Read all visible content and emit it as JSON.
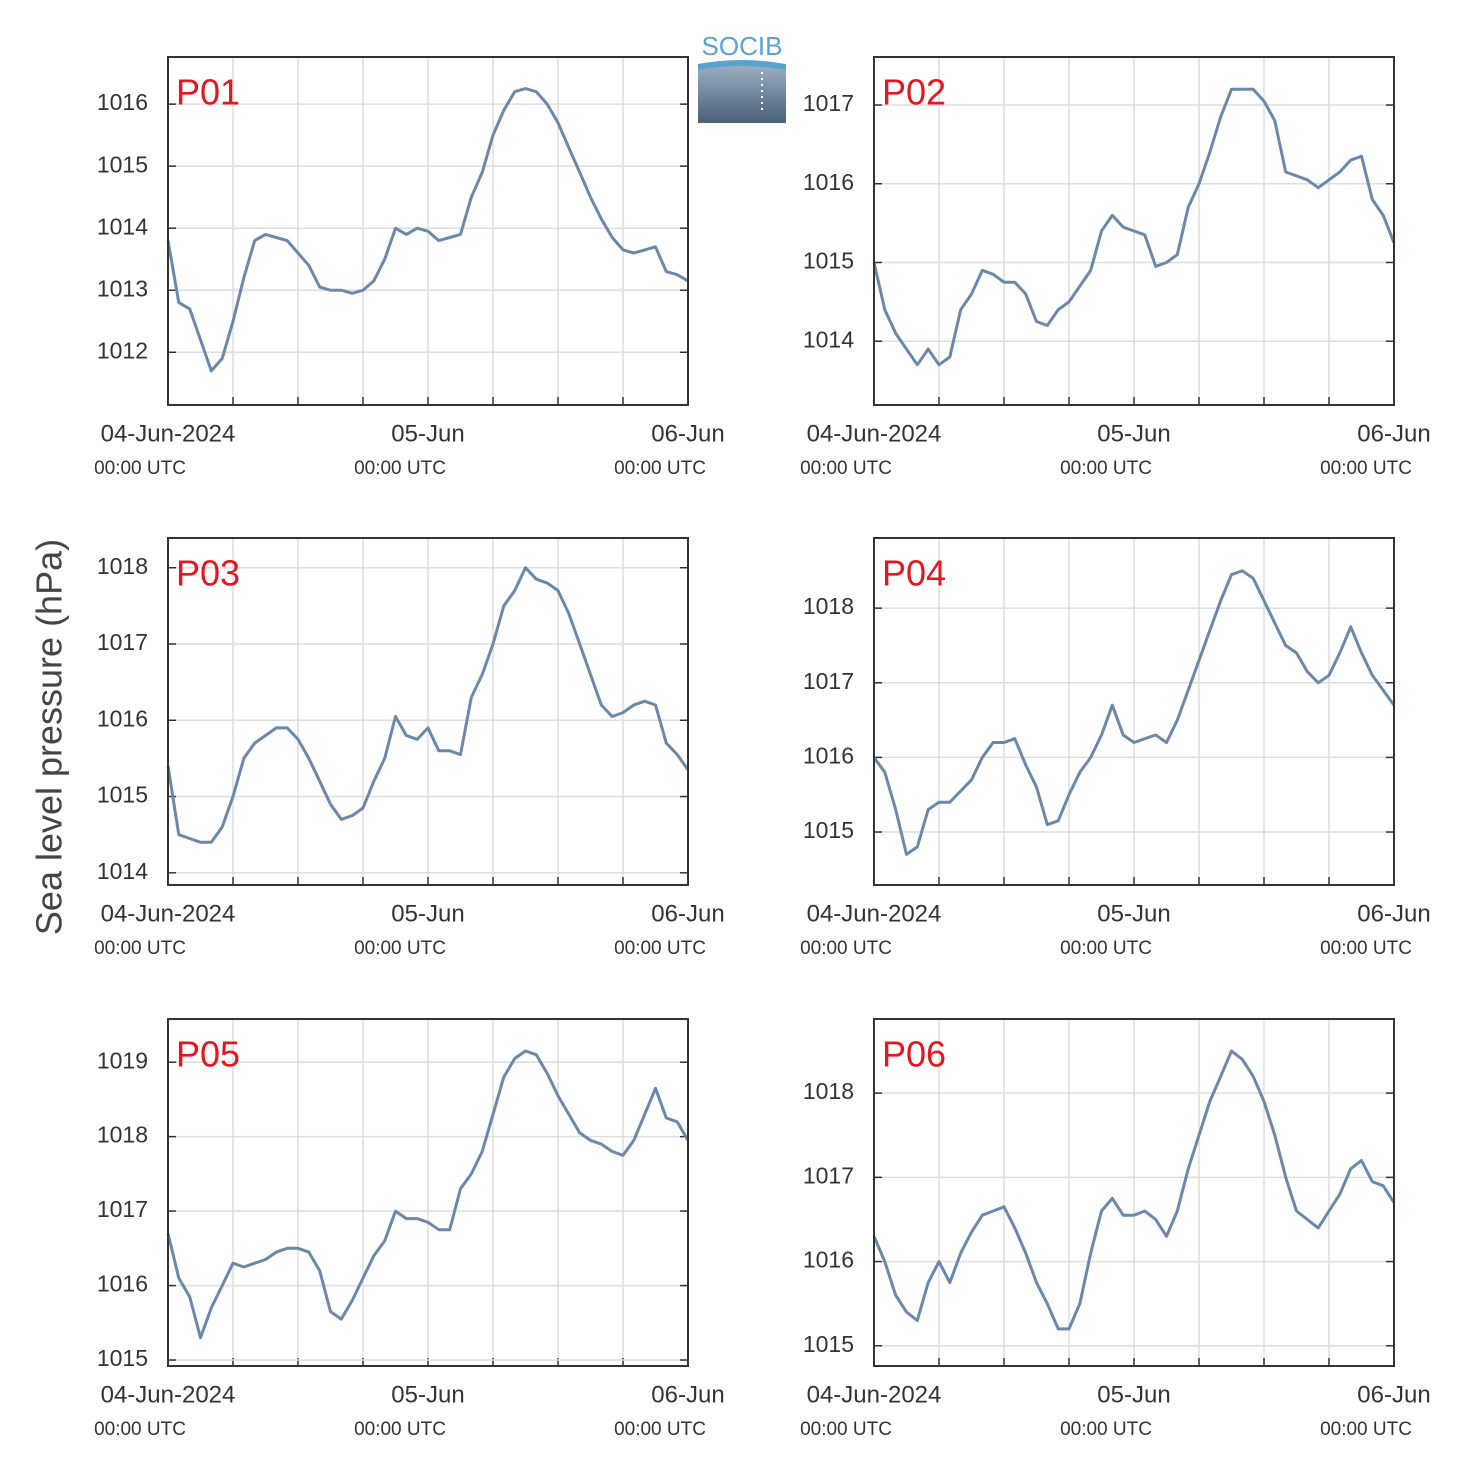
{
  "logo": "SOCIB",
  "y_label": "Sea level pressure (hPa)",
  "chart_data": [
    {
      "type": "line",
      "title": "P01",
      "color": "#6a88aa",
      "x": [
        0,
        1,
        2,
        3,
        4,
        5,
        6,
        7,
        8,
        9,
        10,
        11,
        12,
        13,
        14,
        15,
        16,
        17,
        18,
        19,
        20,
        21,
        22,
        23,
        24,
        25,
        26,
        27,
        28,
        29,
        30,
        31,
        32,
        33,
        34,
        35,
        36,
        37,
        38,
        39,
        40,
        41,
        42,
        43,
        44,
        45,
        46,
        47,
        48
      ],
      "values": [
        1013.8,
        1012.8,
        1012.7,
        1012.2,
        1011.7,
        1011.9,
        1012.5,
        1013.2,
        1013.8,
        1013.9,
        1013.85,
        1013.8,
        1013.6,
        1013.4,
        1013.05,
        1013.0,
        1013.0,
        1012.95,
        1013.0,
        1013.15,
        1013.5,
        1014.0,
        1013.9,
        1014.0,
        1013.95,
        1013.8,
        1013.85,
        1013.9,
        1014.5,
        1014.9,
        1015.5,
        1015.9,
        1016.2,
        1016.25,
        1016.2,
        1016.0,
        1015.7,
        1015.3,
        1014.9,
        1014.5,
        1014.15,
        1013.85,
        1013.65,
        1013.6,
        1013.65,
        1013.7,
        1013.3,
        1013.25,
        1013.15
      ],
      "xlim": [
        0,
        48
      ],
      "xticks": [
        {
          "value": 0,
          "label": "04-Jun-2024",
          "sublabel": "00:00 UTC"
        },
        {
          "value": 24,
          "label": "05-Jun",
          "sublabel": "00:00 UTC"
        },
        {
          "value": 48,
          "label": "06-Jun",
          "sublabel": "00:00 UTC"
        }
      ],
      "minor_xticks": [
        6,
        12,
        18,
        30,
        36,
        42
      ],
      "ylim": [
        1011.15,
        1016.76
      ],
      "yticks": [
        1012,
        1013,
        1014,
        1015,
        1016
      ],
      "grid": true
    },
    {
      "type": "line",
      "title": "P02",
      "color": "#6a88aa",
      "x": [
        0,
        1,
        2,
        3,
        4,
        5,
        6,
        7,
        8,
        9,
        10,
        11,
        12,
        13,
        14,
        15,
        16,
        17,
        18,
        19,
        20,
        21,
        22,
        23,
        24,
        25,
        26,
        27,
        28,
        29,
        30,
        31,
        32,
        33,
        34,
        35,
        36,
        37,
        38,
        39,
        40,
        41,
        42,
        43,
        44,
        45,
        46,
        47,
        48
      ],
      "values": [
        1015.0,
        1014.4,
        1014.1,
        1013.9,
        1013.7,
        1013.9,
        1013.7,
        1013.8,
        1014.4,
        1014.6,
        1014.9,
        1014.85,
        1014.75,
        1014.75,
        1014.6,
        1014.25,
        1014.2,
        1014.4,
        1014.5,
        1014.7,
        1014.9,
        1015.4,
        1015.6,
        1015.45,
        1015.4,
        1015.35,
        1014.95,
        1015.0,
        1015.1,
        1015.7,
        1016.0,
        1016.4,
        1016.85,
        1017.2,
        1017.2,
        1017.2,
        1017.05,
        1016.8,
        1016.15,
        1016.1,
        1016.05,
        1015.95,
        1016.05,
        1016.15,
        1016.3,
        1016.35,
        1015.8,
        1015.6,
        1015.25
      ],
      "xlim": [
        0,
        48
      ],
      "xticks": [
        {
          "value": 0,
          "label": "04-Jun-2024",
          "sublabel": "00:00 UTC"
        },
        {
          "value": 24,
          "label": "05-Jun",
          "sublabel": "00:00 UTC"
        },
        {
          "value": 48,
          "label": "06-Jun",
          "sublabel": "00:00 UTC"
        }
      ],
      "minor_xticks": [
        6,
        12,
        18,
        30,
        36,
        42
      ],
      "ylim": [
        1013.19,
        1017.61
      ],
      "yticks": [
        1014,
        1015,
        1016,
        1017
      ],
      "grid": true
    },
    {
      "type": "line",
      "title": "P03",
      "color": "#6a88aa",
      "x": [
        0,
        1,
        2,
        3,
        4,
        5,
        6,
        7,
        8,
        9,
        10,
        11,
        12,
        13,
        14,
        15,
        16,
        17,
        18,
        19,
        20,
        21,
        22,
        23,
        24,
        25,
        26,
        27,
        28,
        29,
        30,
        31,
        32,
        33,
        34,
        35,
        36,
        37,
        38,
        39,
        40,
        41,
        42,
        43,
        44,
        45,
        46,
        47,
        48
      ],
      "values": [
        1015.4,
        1014.5,
        1014.45,
        1014.4,
        1014.4,
        1014.6,
        1015.0,
        1015.5,
        1015.7,
        1015.8,
        1015.9,
        1015.9,
        1015.75,
        1015.5,
        1015.2,
        1014.9,
        1014.7,
        1014.75,
        1014.85,
        1015.2,
        1015.5,
        1016.05,
        1015.8,
        1015.75,
        1015.9,
        1015.6,
        1015.6,
        1015.55,
        1016.3,
        1016.6,
        1017.0,
        1017.5,
        1017.7,
        1018.0,
        1017.85,
        1017.8,
        1017.7,
        1017.4,
        1017.0,
        1016.6,
        1016.2,
        1016.05,
        1016.1,
        1016.2,
        1016.25,
        1016.2,
        1015.7,
        1015.55,
        1015.35
      ],
      "xlim": [
        0,
        48
      ],
      "xticks": [
        {
          "value": 0,
          "label": "04-Jun-2024",
          "sublabel": "00:00 UTC"
        },
        {
          "value": 24,
          "label": "05-Jun",
          "sublabel": "00:00 UTC"
        },
        {
          "value": 48,
          "label": "06-Jun",
          "sublabel": "00:00 UTC"
        }
      ],
      "minor_xticks": [
        6,
        12,
        18,
        30,
        36,
        42
      ],
      "ylim": [
        1013.84,
        1018.39
      ],
      "yticks": [
        1014,
        1015,
        1016,
        1017,
        1018
      ],
      "grid": true
    },
    {
      "type": "line",
      "title": "P04",
      "color": "#6a88aa",
      "x": [
        0,
        1,
        2,
        3,
        4,
        5,
        6,
        7,
        8,
        9,
        10,
        11,
        12,
        13,
        14,
        15,
        16,
        17,
        18,
        19,
        20,
        21,
        22,
        23,
        24,
        25,
        26,
        27,
        28,
        29,
        30,
        31,
        32,
        33,
        34,
        35,
        36,
        37,
        38,
        39,
        40,
        41,
        42,
        43,
        44,
        45,
        46,
        47,
        48
      ],
      "values": [
        1016.0,
        1015.8,
        1015.3,
        1014.7,
        1014.8,
        1015.3,
        1015.4,
        1015.4,
        1015.55,
        1015.7,
        1016.0,
        1016.2,
        1016.2,
        1016.25,
        1015.9,
        1015.6,
        1015.1,
        1015.15,
        1015.5,
        1015.8,
        1016.0,
        1016.3,
        1016.7,
        1016.3,
        1016.2,
        1016.25,
        1016.3,
        1016.2,
        1016.5,
        1016.9,
        1017.3,
        1017.7,
        1018.1,
        1018.45,
        1018.5,
        1018.4,
        1018.1,
        1017.8,
        1017.5,
        1017.4,
        1017.15,
        1017.0,
        1017.1,
        1017.4,
        1017.75,
        1017.4,
        1017.1,
        1016.9,
        1016.7
      ],
      "xlim": [
        0,
        48
      ],
      "xticks": [
        {
          "value": 0,
          "label": "04-Jun-2024",
          "sublabel": "00:00 UTC"
        },
        {
          "value": 24,
          "label": "05-Jun",
          "sublabel": "00:00 UTC"
        },
        {
          "value": 48,
          "label": "06-Jun",
          "sublabel": "00:00 UTC"
        }
      ],
      "minor_xticks": [
        6,
        12,
        18,
        30,
        36,
        42
      ],
      "ylim": [
        1014.29,
        1018.94
      ],
      "yticks": [
        1015,
        1016,
        1017,
        1018
      ],
      "grid": true
    },
    {
      "type": "line",
      "title": "P05",
      "color": "#6a88aa",
      "x": [
        0,
        1,
        2,
        3,
        4,
        5,
        6,
        7,
        8,
        9,
        10,
        11,
        12,
        13,
        14,
        15,
        16,
        17,
        18,
        19,
        20,
        21,
        22,
        23,
        24,
        25,
        26,
        27,
        28,
        29,
        30,
        31,
        32,
        33,
        34,
        35,
        36,
        37,
        38,
        39,
        40,
        41,
        42,
        43,
        44,
        45,
        46,
        47,
        48
      ],
      "values": [
        1016.7,
        1016.1,
        1015.85,
        1015.3,
        1015.7,
        1016.0,
        1016.3,
        1016.25,
        1016.3,
        1016.35,
        1016.45,
        1016.5,
        1016.5,
        1016.45,
        1016.2,
        1015.65,
        1015.55,
        1015.8,
        1016.1,
        1016.4,
        1016.6,
        1017.0,
        1016.9,
        1016.9,
        1016.85,
        1016.75,
        1016.75,
        1017.3,
        1017.5,
        1017.8,
        1018.3,
        1018.8,
        1019.05,
        1019.15,
        1019.1,
        1018.85,
        1018.55,
        1018.3,
        1018.05,
        1017.95,
        1017.9,
        1017.8,
        1017.75,
        1017.95,
        1018.3,
        1018.65,
        1018.25,
        1018.2,
        1017.95
      ],
      "xlim": [
        0,
        48
      ],
      "xticks": [
        {
          "value": 0,
          "label": "04-Jun-2024",
          "sublabel": "00:00 UTC"
        },
        {
          "value": 24,
          "label": "05-Jun",
          "sublabel": "00:00 UTC"
        },
        {
          "value": 48,
          "label": "06-Jun",
          "sublabel": "00:00 UTC"
        }
      ],
      "minor_xticks": [
        6,
        12,
        18,
        30,
        36,
        42
      ],
      "ylim": [
        1014.92,
        1019.58
      ],
      "yticks": [
        1015,
        1016,
        1017,
        1018,
        1019
      ],
      "grid": true
    },
    {
      "type": "line",
      "title": "P06",
      "color": "#6a88aa",
      "x": [
        0,
        1,
        2,
        3,
        4,
        5,
        6,
        7,
        8,
        9,
        10,
        11,
        12,
        13,
        14,
        15,
        16,
        17,
        18,
        19,
        20,
        21,
        22,
        23,
        24,
        25,
        26,
        27,
        28,
        29,
        30,
        31,
        32,
        33,
        34,
        35,
        36,
        37,
        38,
        39,
        40,
        41,
        42,
        43,
        44,
        45,
        46,
        47,
        48
      ],
      "values": [
        1016.3,
        1016.0,
        1015.6,
        1015.4,
        1015.3,
        1015.75,
        1016.0,
        1015.75,
        1016.1,
        1016.35,
        1016.55,
        1016.6,
        1016.65,
        1016.4,
        1016.1,
        1015.75,
        1015.5,
        1015.2,
        1015.2,
        1015.5,
        1016.1,
        1016.6,
        1016.75,
        1016.55,
        1016.55,
        1016.6,
        1016.5,
        1016.3,
        1016.6,
        1017.1,
        1017.5,
        1017.9,
        1018.2,
        1018.5,
        1018.4,
        1018.2,
        1017.9,
        1017.5,
        1017.0,
        1016.6,
        1016.5,
        1016.4,
        1016.6,
        1016.8,
        1017.1,
        1017.2,
        1016.95,
        1016.9,
        1016.7
      ],
      "xlim": [
        0,
        48
      ],
      "xticks": [
        {
          "value": 0,
          "label": "04-Jun-2024",
          "sublabel": "00:00 UTC"
        },
        {
          "value": 24,
          "label": "05-Jun",
          "sublabel": "00:00 UTC"
        },
        {
          "value": 48,
          "label": "06-Jun",
          "sublabel": "00:00 UTC"
        }
      ],
      "minor_xticks": [
        6,
        12,
        18,
        30,
        36,
        42
      ],
      "ylim": [
        1014.76,
        1018.88
      ],
      "yticks": [
        1015,
        1016,
        1017,
        1018
      ],
      "grid": true
    }
  ]
}
